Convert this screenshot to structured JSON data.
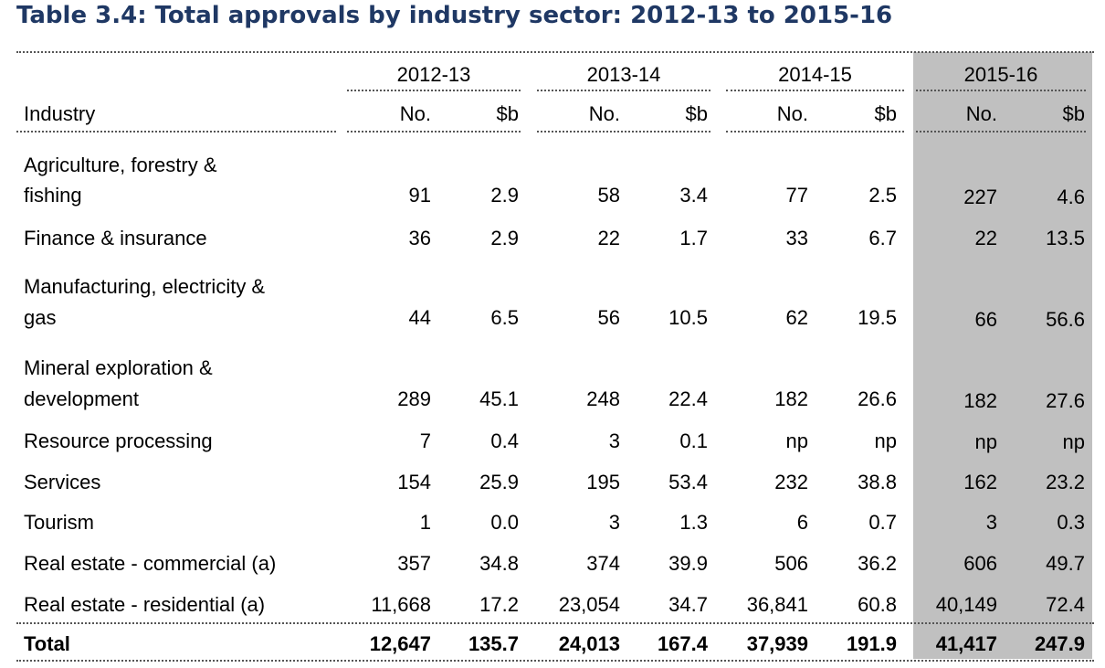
{
  "title": "Table 3.4: Total approvals by industry sector: 2012-13 to 2015-16",
  "colors": {
    "title": "#1f3864",
    "highlight_column": "#c0c0c0"
  },
  "table": {
    "years": [
      "2012-13",
      "2013-14",
      "2014-15",
      "2015-16"
    ],
    "industry_header": "Industry",
    "sub_headers": [
      "No.",
      "$b",
      "No.",
      "$b",
      "No.",
      "$b",
      "No.",
      "$b"
    ],
    "rows": [
      {
        "label_lines": [
          "Agriculture, forestry &",
          "fishing"
        ],
        "values": [
          "91",
          "2.9",
          "58",
          "3.4",
          "77",
          "2.5",
          "227",
          "4.6"
        ]
      },
      {
        "label_lines": [
          "Finance & insurance"
        ],
        "values": [
          "36",
          "2.9",
          "22",
          "1.7",
          "33",
          "6.7",
          "22",
          "13.5"
        ]
      },
      {
        "label_lines": [
          "Manufacturing, electricity &",
          "gas"
        ],
        "values": [
          "44",
          "6.5",
          "56",
          "10.5",
          "62",
          "19.5",
          "66",
          "56.6"
        ]
      },
      {
        "label_lines": [
          "Mineral exploration &",
          "development"
        ],
        "values": [
          "289",
          "45.1",
          "248",
          "22.4",
          "182",
          "26.6",
          "182",
          "27.6"
        ]
      },
      {
        "label_lines": [
          "Resource processing"
        ],
        "values": [
          "7",
          "0.4",
          "3",
          "0.1",
          "np",
          "np",
          "np",
          "np"
        ]
      },
      {
        "label_lines": [
          "Services"
        ],
        "values": [
          "154",
          "25.9",
          "195",
          "53.4",
          "232",
          "38.8",
          "162",
          "23.2"
        ]
      },
      {
        "label_lines": [
          "Tourism"
        ],
        "values": [
          "1",
          "0.0",
          "3",
          "1.3",
          "6",
          "0.7",
          "3",
          "0.3"
        ]
      },
      {
        "label_lines": [
          "Real estate - commercial (a)"
        ],
        "values": [
          "357",
          "34.8",
          "374",
          "39.9",
          "506",
          "36.2",
          "606",
          "49.7"
        ]
      },
      {
        "label_lines": [
          "Real estate - residential (a)"
        ],
        "values": [
          "11,668",
          "17.2",
          "23,054",
          "34.7",
          "36,841",
          "60.8",
          "40,149",
          "72.4"
        ]
      }
    ],
    "total": {
      "label": "Total",
      "values": [
        "12,647",
        "135.7",
        "24,013",
        "167.4",
        "37,939",
        "191.9",
        "41,417",
        "247.9"
      ]
    }
  }
}
